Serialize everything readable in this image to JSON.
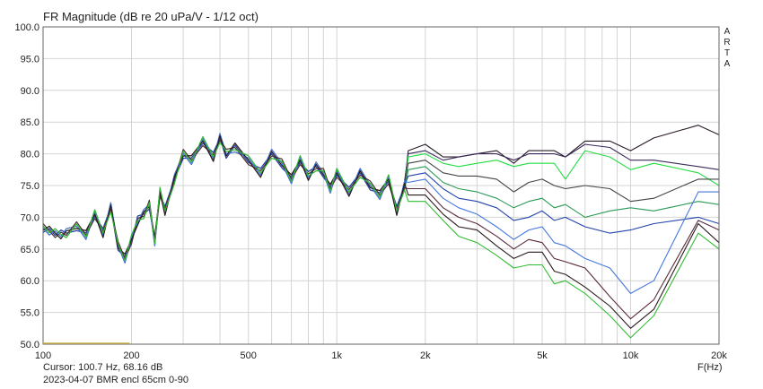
{
  "chart_data": {
    "type": "line",
    "title": "FR Magnitude (dB re 20 uPa/V - 1/12 oct)",
    "xlabel": "F(Hz)",
    "ylabel": "",
    "x_scale": "log",
    "xlim": [
      100,
      20000
    ],
    "ylim": [
      50,
      100
    ],
    "y_ticks": [
      "100.0",
      "95.0",
      "90.0",
      "85.0",
      "80.0",
      "75.0",
      "70.0",
      "65.0",
      "60.0",
      "55.0",
      "50.0"
    ],
    "x_tick_values": [
      100,
      200,
      500,
      1000,
      2000,
      5000,
      10000,
      20000
    ],
    "x_tick_labels": [
      "100",
      "200",
      "500",
      "1k",
      "2k",
      "5k",
      "10k",
      "20k"
    ],
    "grid": true,
    "base_x": [
      100,
      105,
      110,
      115,
      120,
      130,
      140,
      150,
      160,
      170,
      180,
      190,
      200,
      210,
      220,
      230,
      240,
      250,
      260,
      280,
      300,
      320,
      350,
      380,
      400,
      420,
      450,
      500,
      550,
      600,
      650,
      700,
      750,
      800,
      850,
      900,
      950,
      1000,
      1100,
      1200,
      1300,
      1400,
      1500,
      1600,
      1700
    ],
    "base_y": [
      68.3,
      67.9,
      67.5,
      67.3,
      67.5,
      68.6,
      67.2,
      70.5,
      67.5,
      71.6,
      65.5,
      63.5,
      66.5,
      69.5,
      70.5,
      72.0,
      66.2,
      74.0,
      71.0,
      76.0,
      80.0,
      79.0,
      82.0,
      79.5,
      82.5,
      80.0,
      81.0,
      79.0,
      77.0,
      80.0,
      78.5,
      76.0,
      79.0,
      76.5,
      78.0,
      77.0,
      74.5,
      77.0,
      74.0,
      77.0,
      75.0,
      73.5,
      76.0,
      71.0,
      75.0
    ],
    "series": [
      {
        "color": "#2a1a28",
        "values": [
          80.5,
          81.5,
          79.5,
          79.5,
          80.0,
          80.5,
          78.5,
          80.5,
          80.5,
          80.5,
          79.5,
          82.0,
          82.0,
          80.5,
          82.5,
          84.5,
          83.0
        ]
      },
      {
        "color": "#3a2a5a",
        "values": [
          80.0,
          80.5,
          79.0,
          79.5,
          80.0,
          80.0,
          79.0,
          80.0,
          80.0,
          80.0,
          79.5,
          81.5,
          81.0,
          79.0,
          79.0,
          78.0,
          77.5
        ]
      },
      {
        "color": "#22dd44",
        "values": [
          79.5,
          80.0,
          78.5,
          78.0,
          78.5,
          79.0,
          78.0,
          78.5,
          78.5,
          78.5,
          76.0,
          80.5,
          79.5,
          77.5,
          78.5,
          77.0,
          75.0
        ]
      },
      {
        "color": "#444444",
        "values": [
          78.5,
          79.0,
          77.0,
          76.5,
          76.5,
          76.0,
          74.0,
          75.5,
          76.0,
          75.0,
          74.5,
          75.0,
          74.5,
          72.5,
          73.0,
          76.0,
          76.0
        ]
      },
      {
        "color": "#2a9a55",
        "values": [
          77.5,
          78.0,
          75.5,
          74.5,
          74.0,
          73.0,
          71.5,
          72.5,
          73.0,
          71.5,
          72.0,
          70.0,
          71.0,
          71.5,
          71.0,
          72.5,
          72.0
        ]
      },
      {
        "color": "#2244aa",
        "values": [
          76.5,
          77.0,
          74.5,
          73.0,
          72.5,
          71.5,
          69.5,
          70.0,
          71.0,
          69.5,
          70.0,
          68.5,
          67.5,
          68.0,
          69.0,
          70.0,
          69.0
        ]
      },
      {
        "color": "#4477dd",
        "values": [
          75.5,
          76.0,
          73.0,
          71.5,
          70.5,
          68.5,
          66.5,
          68.0,
          68.5,
          66.0,
          65.5,
          63.5,
          62.0,
          58.0,
          60.0,
          74.0,
          74.0
        ]
      },
      {
        "color": "#5a2a3a",
        "values": [
          74.5,
          74.5,
          71.5,
          70.0,
          69.0,
          67.0,
          65.0,
          66.5,
          66.0,
          63.5,
          63.0,
          62.0,
          57.5,
          54.0,
          57.0,
          69.5,
          68.0
        ]
      },
      {
        "color": "#2a1a1a",
        "values": [
          73.5,
          73.5,
          70.5,
          68.5,
          68.0,
          65.5,
          63.5,
          64.5,
          64.5,
          61.5,
          61.0,
          59.0,
          56.0,
          52.5,
          55.5,
          69.0,
          66.0
        ]
      },
      {
        "color": "#33bb33",
        "values": [
          72.5,
          72.5,
          69.5,
          67.0,
          66.0,
          64.0,
          62.0,
          62.5,
          62.5,
          59.5,
          60.0,
          58.0,
          54.5,
          51.0,
          54.5,
          67.5,
          65.0
        ]
      }
    ],
    "tail_x": [
      1750,
      2000,
      2300,
      2600,
      3000,
      3500,
      4000,
      4500,
      5000,
      5500,
      6000,
      7000,
      8500,
      10000,
      12000,
      17000,
      20000
    ]
  },
  "labels": {
    "arta": [
      "A",
      "R",
      "T",
      "A"
    ],
    "cursor": "Cursor: 100.7 Hz, 68.16 dB",
    "caption": "2023-04-07 BMR encl 65cm 0-90"
  }
}
